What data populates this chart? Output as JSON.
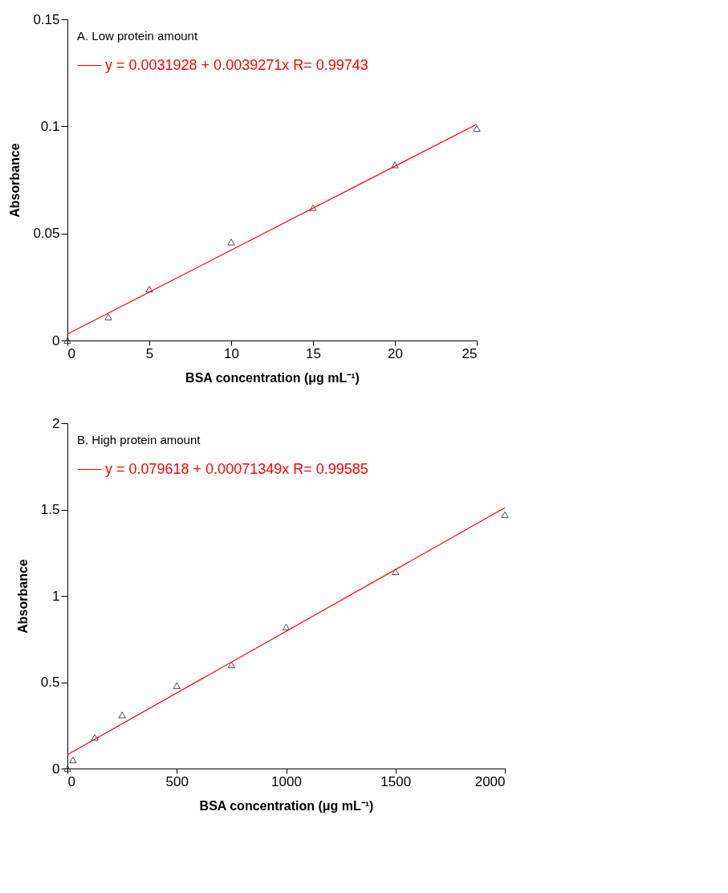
{
  "chart_data": [
    {
      "type": "scatter",
      "xlabel": "BSA concentration (μg mL⁻¹)",
      "ylabel": "Absorbance",
      "annotations": [
        "A. Low protein  amount"
      ],
      "xlim": [
        0,
        25
      ],
      "ylim": [
        0,
        0.15
      ],
      "xticks": [
        0,
        5,
        10,
        15,
        20,
        25
      ],
      "yticks": [
        0,
        0.05,
        0.1,
        0.15
      ],
      "legend": "top left",
      "grid": false,
      "series": [
        {
          "marker": "triangle",
          "color": "#000000",
          "x": [
            0,
            2.5,
            5,
            10,
            15,
            20,
            25
          ],
          "values": [
            0,
            0.011,
            0.024,
            0.046,
            0.062,
            0.082,
            0.099
          ]
        },
        {
          "type": "line",
          "marker": "none",
          "name": "y = 0.0031928 + 0.0039271x   R= 0.99743",
          "color": "#ff0000",
          "x": [
            0,
            25
          ],
          "values": [
            0.003,
            0.101
          ]
        }
      ]
    },
    {
      "type": "scatter",
      "xlabel": "BSA concentration (μg mL⁻¹)",
      "ylabel": "Absorbance",
      "annotations": [
        "B. High protein amount"
      ],
      "xlim": [
        0,
        2000
      ],
      "ylim": [
        0,
        2
      ],
      "xticks": [
        0,
        500,
        1000,
        1500,
        2000
      ],
      "yticks": [
        0,
        0.5,
        1,
        1.5,
        2
      ],
      "legend": "top left",
      "grid": false,
      "series": [
        {
          "marker": "triangle",
          "color": "#000000",
          "x": [
            0,
            25,
            125,
            250,
            500,
            750,
            1000,
            1500,
            2000
          ],
          "values": [
            0,
            0.05,
            0.18,
            0.31,
            0.48,
            0.6,
            0.82,
            1.14,
            1.47
          ]
        },
        {
          "type": "line",
          "marker": "none",
          "name": "y = 0.079618 + 0.00071349x   R= 0.99585",
          "color": "#ff0000",
          "x": [
            0,
            2000
          ],
          "values": [
            0.08,
            1.51
          ]
        }
      ]
    }
  ]
}
